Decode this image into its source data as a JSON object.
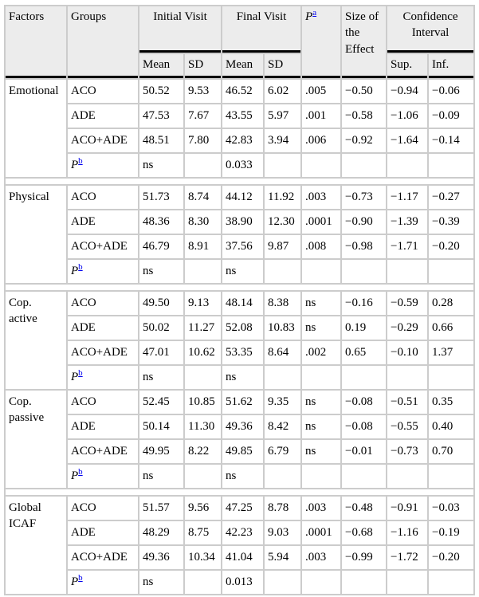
{
  "colors": {
    "header_bg": "#ececec",
    "grid_line": "#cccccc",
    "rule_black": "#000000",
    "footnote_link_blue": "#0000EE"
  },
  "header": {
    "factors": "Factors",
    "groups": "Groups",
    "initial_visit": "Initial Visit",
    "final_visit": "Final Visit",
    "p_label": "P",
    "p_sup": "a",
    "size_effect": "Size of the Effect",
    "confidence": "Confidence Interval",
    "mean": "Mean",
    "sd": "SD",
    "sup": "Sup.",
    "inf": "Inf."
  },
  "p_row": {
    "label": "P",
    "sup": "b"
  },
  "blocks": [
    {
      "factor": "Emotional",
      "spacer_after": true,
      "rows": [
        {
          "group": "ACO",
          "values": [
            "50.52",
            "9.53",
            "46.52",
            "6.02",
            ".005",
            "−0.50",
            "−0.94",
            "−0.06"
          ]
        },
        {
          "group": "ADE",
          "values": [
            "47.53",
            "7.67",
            "43.55",
            "5.97",
            ".001",
            "−0.58",
            "−1.06",
            "−0.09"
          ]
        },
        {
          "group": "ACO+ADE",
          "values": [
            "48.51",
            "7.80",
            "42.83",
            "3.94",
            ".006",
            "−0.92",
            "−1.64",
            "−0.14"
          ]
        }
      ],
      "p_values": [
        "ns",
        "",
        "0.033",
        "",
        "",
        "",
        "",
        ""
      ]
    },
    {
      "factor": "Physical",
      "spacer_after": true,
      "rows": [
        {
          "group": "ACO",
          "values": [
            "51.73",
            "8.74",
            "44.12",
            "11.92",
            ".003",
            "−0.73",
            "−1.17",
            "−0.27"
          ]
        },
        {
          "group": "ADE",
          "values": [
            "48.36",
            "8.30",
            "38.90",
            "12.30",
            ".0001",
            "−0.90",
            "−1.39",
            "−0.39"
          ]
        },
        {
          "group": "ACO+ADE",
          "values": [
            "46.79",
            "8.91",
            "37.56",
            "9.87",
            ".008",
            "−0.98",
            "−1.71",
            "−0.20"
          ]
        }
      ],
      "p_values": [
        "ns",
        "",
        "ns",
        "",
        "",
        "",
        "",
        ""
      ]
    },
    {
      "factor": "Cop. active",
      "spacer_after": false,
      "rows": [
        {
          "group": "ACO",
          "values": [
            "49.50",
            "9.13",
            "48.14",
            "8.38",
            "ns",
            "−0.16",
            "−0.59",
            "0.28"
          ]
        },
        {
          "group": "ADE",
          "values": [
            "50.02",
            "11.27",
            "52.08",
            "10.83",
            "ns",
            "0.19",
            "−0.29",
            "0.66"
          ]
        },
        {
          "group": "ACO+ADE",
          "values": [
            "47.01",
            "10.62",
            "53.35",
            "8.64",
            ".002",
            "0.65",
            "−0.10",
            "1.37"
          ]
        }
      ],
      "p_values": [
        "ns",
        "",
        "ns",
        "",
        "",
        "",
        "",
        ""
      ]
    },
    {
      "factor": "Cop. passive",
      "spacer_after": true,
      "rows": [
        {
          "group": "ACO",
          "values": [
            "52.45",
            "10.85",
            "51.62",
            "9.35",
            "ns",
            "−0.08",
            "−0.51",
            "0.35"
          ]
        },
        {
          "group": "ADE",
          "values": [
            "50.14",
            "11.30",
            "49.36",
            "8.42",
            "ns",
            "−0.08",
            "−0.55",
            "0.40"
          ]
        },
        {
          "group": "ACO+ADE",
          "values": [
            "49.95",
            "8.22",
            "49.85",
            "6.79",
            "ns",
            "−0.01",
            "−0.73",
            "0.70"
          ]
        }
      ],
      "p_values": [
        "ns",
        "",
        "ns",
        "",
        "",
        "",
        "",
        ""
      ]
    },
    {
      "factor": "Global ICAF",
      "spacer_after": false,
      "rows": [
        {
          "group": "ACO",
          "values": [
            "51.57",
            "9.56",
            "47.25",
            "8.78",
            ".003",
            "−0.48",
            "−0.91",
            "−0.03"
          ]
        },
        {
          "group": "ADE",
          "values": [
            "48.29",
            "8.75",
            "42.23",
            "9.03",
            ".0001",
            "−0.68",
            "−1.16",
            "−0.19"
          ]
        },
        {
          "group": "ACO+ADE",
          "values": [
            "49.36",
            "10.34",
            "41.04",
            "5.94",
            ".003",
            "−0.99",
            "−1.72",
            "−0.20"
          ]
        }
      ],
      "p_values": [
        "ns",
        "",
        "0.013",
        "",
        "",
        "",
        "",
        ""
      ]
    }
  ]
}
